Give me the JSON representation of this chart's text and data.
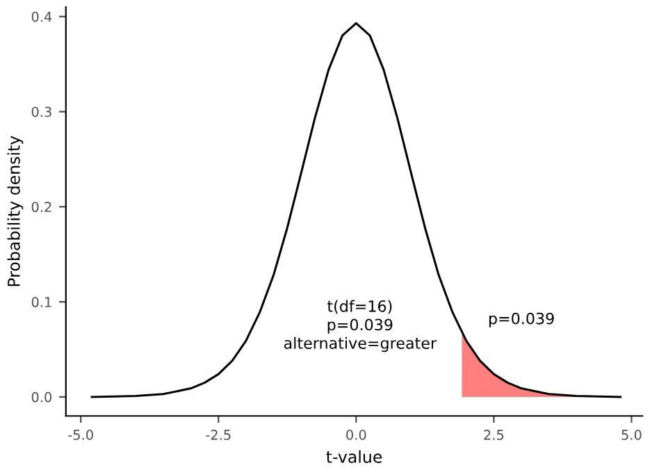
{
  "chart_data": {
    "type": "line",
    "xlabel": "t-value",
    "ylabel": "Probability density",
    "xlim": [
      -5.27,
      5.2
    ],
    "ylim": [
      -0.02,
      0.41
    ],
    "xticks": [
      {
        "value": -5,
        "label": "-5.0"
      },
      {
        "value": -2.5,
        "label": "-2.5"
      },
      {
        "value": 0,
        "label": "0.0"
      },
      {
        "value": 2.5,
        "label": "2.5"
      },
      {
        "value": 5,
        "label": "5.0"
      }
    ],
    "yticks": [
      {
        "value": 0,
        "label": "0.0"
      },
      0.1,
      0.2,
      0.3,
      0.4
    ],
    "grid": false,
    "legend": false,
    "marker": "none",
    "line_style": "solid",
    "series": [
      {
        "color": "#000000",
        "x": [
          -4.8,
          -4,
          -3.5,
          -3,
          -2.75,
          -2.5,
          -2.25,
          -2,
          -1.75,
          -1.5,
          -1.25,
          -1,
          -0.75,
          -0.5,
          -0.25,
          0,
          0.25,
          0.5,
          0.75,
          1,
          1.25,
          1.5,
          1.75,
          2,
          2.25,
          2.5,
          2.75,
          3,
          3.5,
          4,
          4.8
        ],
        "values": [
          0.0,
          0.001,
          0.003,
          0.009,
          0.015,
          0.024,
          0.038,
          0.059,
          0.089,
          0.128,
          0.178,
          0.235,
          0.293,
          0.344,
          0.38,
          0.393,
          0.38,
          0.344,
          0.293,
          0.235,
          0.178,
          0.128,
          0.089,
          0.059,
          0.038,
          0.024,
          0.015,
          0.009,
          0.003,
          0.001,
          0.0
        ]
      },
      {
        "type": "area",
        "color": "#ff7f7f",
        "x": [
          1.92,
          2,
          2.25,
          2.5,
          2.75,
          3,
          3.5,
          4,
          4.8
        ],
        "values": [
          0.067,
          0.059,
          0.038,
          0.024,
          0.015,
          0.009,
          0.003,
          0.001,
          0.0
        ]
      }
    ],
    "annotations": [
      "t(df=16)\np=0.039\nalternative=greater",
      "p=0.039"
    ]
  }
}
